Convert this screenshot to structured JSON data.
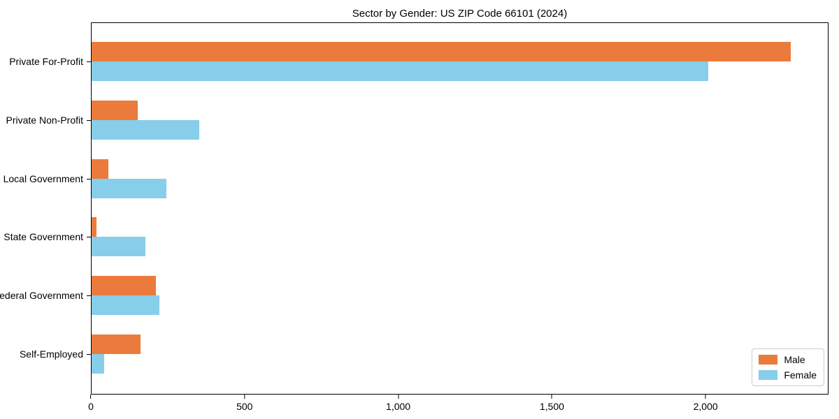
{
  "chart_data": {
    "type": "bar",
    "orientation": "horizontal",
    "title": "Sector by Gender: US ZIP Code 66101 (2024)",
    "categories": [
      "Private For-Profit",
      "Private Non-Profit",
      "Local Government",
      "State Government",
      "Federal Government",
      "Self-Employed"
    ],
    "series": [
      {
        "name": "Male",
        "color": "#eb7b3c",
        "values": [
          2280,
          150,
          55,
          15,
          210,
          160
        ]
      },
      {
        "name": "Female",
        "color": "#87ceeb",
        "values": [
          2010,
          350,
          245,
          175,
          220,
          40
        ]
      }
    ],
    "xlabel": "",
    "ylabel": "",
    "xlim": [
      0,
      2400
    ],
    "xticks": [
      0,
      500,
      1000,
      1500,
      2000
    ],
    "xtick_labels": [
      "0",
      "500",
      "1,000",
      "1,500",
      "2,000"
    ],
    "grid": false,
    "legend_position": "lower right",
    "colors": {
      "male": "#eb7b3c",
      "female": "#87ceeb",
      "spine": "#000000",
      "background": "#ffffff",
      "legend_border": "#cccccc"
    }
  }
}
